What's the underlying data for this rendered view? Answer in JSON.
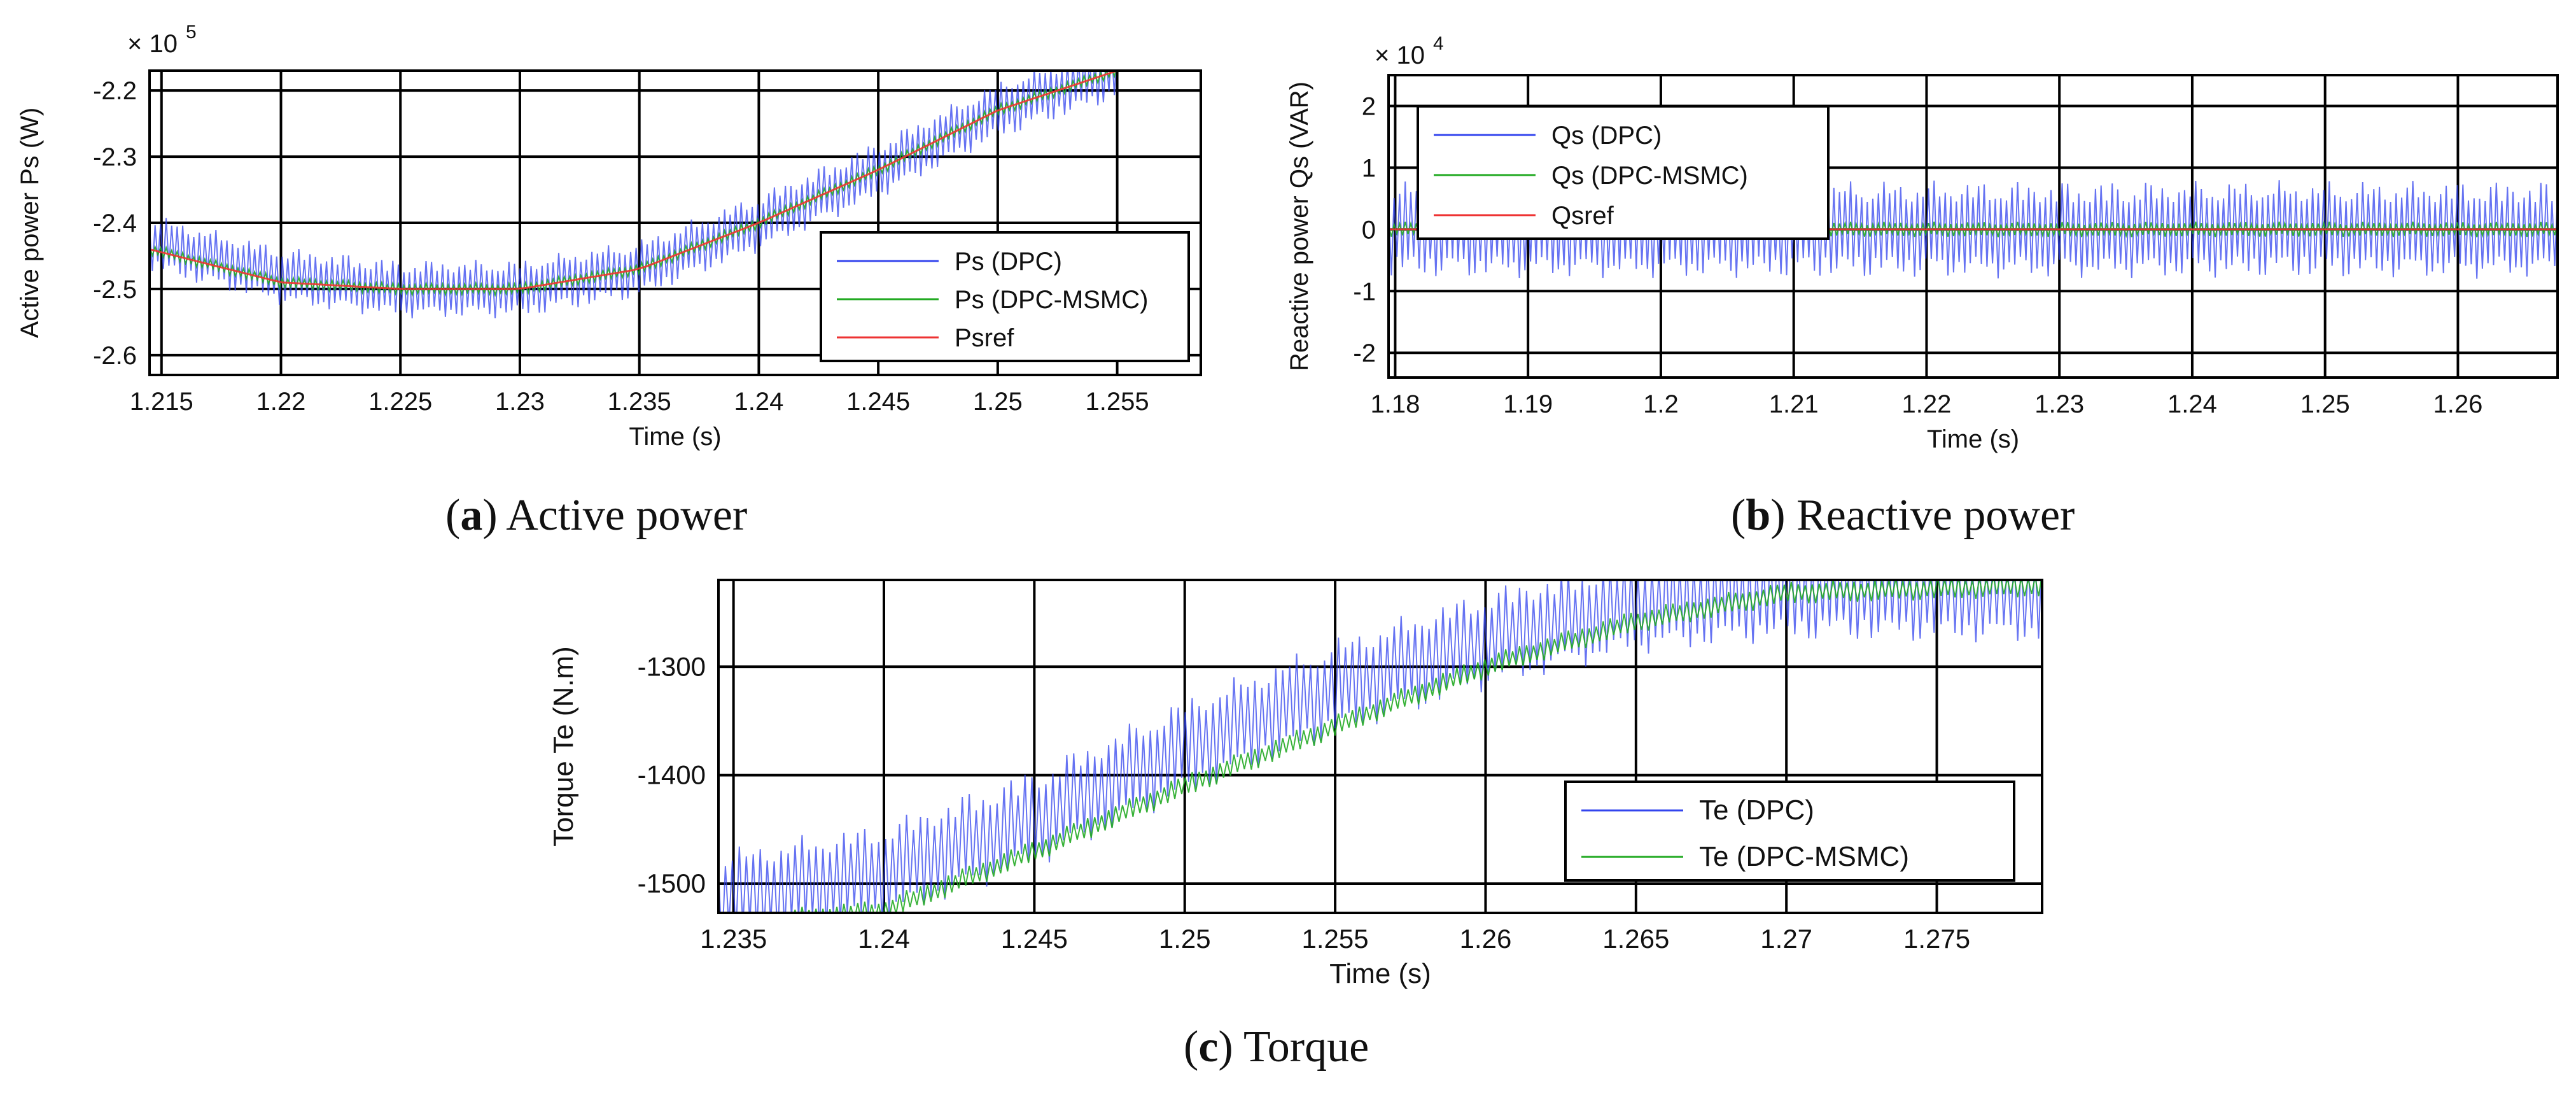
{
  "chart_data": [
    {
      "type": "line",
      "caption_letter": "a",
      "caption_text": "Active power",
      "xlabel": "Time (s)",
      "ylabel": "Active power Ps (W)",
      "y_multiplier": "× 10",
      "y_exponent": "5",
      "xlim": [
        1.2145,
        1.2585
      ],
      "ylim": [
        -2.63,
        -2.17
      ],
      "xticks": [
        1.215,
        1.22,
        1.225,
        1.23,
        1.235,
        1.24,
        1.245,
        1.25,
        1.255
      ],
      "xtick_labels": [
        "1.215",
        "1.22",
        "1.225",
        "1.23",
        "1.235",
        "1.24",
        "1.245",
        "1.25",
        "1.255"
      ],
      "yticks": [
        -2.2,
        -2.3,
        -2.4,
        -2.5,
        -2.6
      ],
      "ytick_labels": [
        "-2.2",
        "-2.3",
        "-2.4",
        "-2.5",
        "-2.6"
      ],
      "grid": true,
      "legend_position": "bottom-right",
      "series": [
        {
          "name": "Ps (DPC)",
          "color": "#3344ee",
          "x": [
            1.2145,
            1.22,
            1.225,
            1.23,
            1.235,
            1.24,
            1.245,
            1.25,
            1.255
          ],
          "y": [
            -2.43,
            -2.48,
            -2.5,
            -2.5,
            -2.47,
            -2.4,
            -2.32,
            -2.23,
            -2.17
          ],
          "ripple": 0.09
        },
        {
          "name": "Ps (DPC-MSMC)",
          "color": "#22aa22",
          "x": [
            1.2145,
            1.22,
            1.225,
            1.23,
            1.235,
            1.24,
            1.245,
            1.25,
            1.255
          ],
          "y": [
            -2.44,
            -2.49,
            -2.5,
            -2.5,
            -2.47,
            -2.4,
            -2.32,
            -2.23,
            -2.17
          ],
          "ripple": 0.018
        },
        {
          "name": "Psref",
          "color": "#ee3333",
          "x": [
            1.2145,
            1.22,
            1.225,
            1.23,
            1.235,
            1.24,
            1.245,
            1.25,
            1.255
          ],
          "y": [
            -2.44,
            -2.49,
            -2.5,
            -2.5,
            -2.47,
            -2.4,
            -2.32,
            -2.23,
            -2.17
          ],
          "ripple": 0
        }
      ]
    },
    {
      "type": "line",
      "caption_letter": "b",
      "caption_text": "Reactive power",
      "xlabel": "Time (s)",
      "ylabel": "Reactive power Qs (VAR)",
      "y_multiplier": "× 10",
      "y_exponent": "4",
      "xlim": [
        1.1795,
        1.2675
      ],
      "ylim": [
        -2.4,
        2.5
      ],
      "xticks": [
        1.18,
        1.19,
        1.2,
        1.21,
        1.22,
        1.23,
        1.24,
        1.25,
        1.26
      ],
      "xtick_labels": [
        "1.18",
        "1.19",
        "1.2",
        "1.21",
        "1.22",
        "1.23",
        "1.24",
        "1.25",
        "1.26"
      ],
      "yticks": [
        2,
        1,
        0,
        -1,
        -2
      ],
      "ytick_labels": [
        "2",
        "1",
        "0",
        "-1",
        "-2"
      ],
      "grid": true,
      "legend_position": "top-left",
      "series": [
        {
          "name": "Qs (DPC)",
          "color": "#3344ee",
          "x": [
            1.1795,
            1.2675
          ],
          "y": [
            0,
            0
          ],
          "ripple": 1.6
        },
        {
          "name": "Qs (DPC-MSMC)",
          "color": "#22aa22",
          "x": [
            1.1795,
            1.2675
          ],
          "y": [
            0,
            0
          ],
          "ripple": 0.25
        },
        {
          "name": "Qsref",
          "color": "#ee3333",
          "x": [
            1.1795,
            1.2675
          ],
          "y": [
            0,
            0
          ],
          "ripple": 0
        }
      ]
    },
    {
      "type": "line",
      "caption_letter": "c",
      "caption_text": "Torque",
      "xlabel": "Time (s)",
      "ylabel": "Torque Te (N.m)",
      "xlim": [
        1.2345,
        1.2785
      ],
      "ylim": [
        -1527,
        -1220
      ],
      "xticks": [
        1.235,
        1.24,
        1.245,
        1.25,
        1.255,
        1.26,
        1.265,
        1.27,
        1.275
      ],
      "xtick_labels": [
        "1.235",
        "1.24",
        "1.245",
        "1.25",
        "1.255",
        "1.26",
        "1.265",
        "1.27",
        "1.275"
      ],
      "yticks": [
        -1300,
        -1400,
        -1500
      ],
      "ytick_labels": [
        "-1300",
        "-1400",
        "-1500"
      ],
      "grid": true,
      "legend_position": "bottom-right",
      "series": [
        {
          "name": "Te (DPC)",
          "color": "#3344ee",
          "x": [
            1.2345,
            1.24,
            1.245,
            1.25,
            1.255,
            1.26,
            1.265,
            1.27,
            1.2785
          ],
          "y": [
            -1515,
            -1490,
            -1440,
            -1375,
            -1320,
            -1275,
            -1242,
            -1230,
            -1232
          ],
          "ripple": 95
        },
        {
          "name": "Te (DPC-MSMC)",
          "color": "#22aa22",
          "x": [
            1.2345,
            1.24,
            1.245,
            1.25,
            1.255,
            1.26,
            1.265,
            1.27,
            1.2785
          ],
          "y": [
            -1540,
            -1525,
            -1470,
            -1410,
            -1355,
            -1300,
            -1258,
            -1232,
            -1225
          ],
          "ripple": 22
        }
      ]
    }
  ]
}
